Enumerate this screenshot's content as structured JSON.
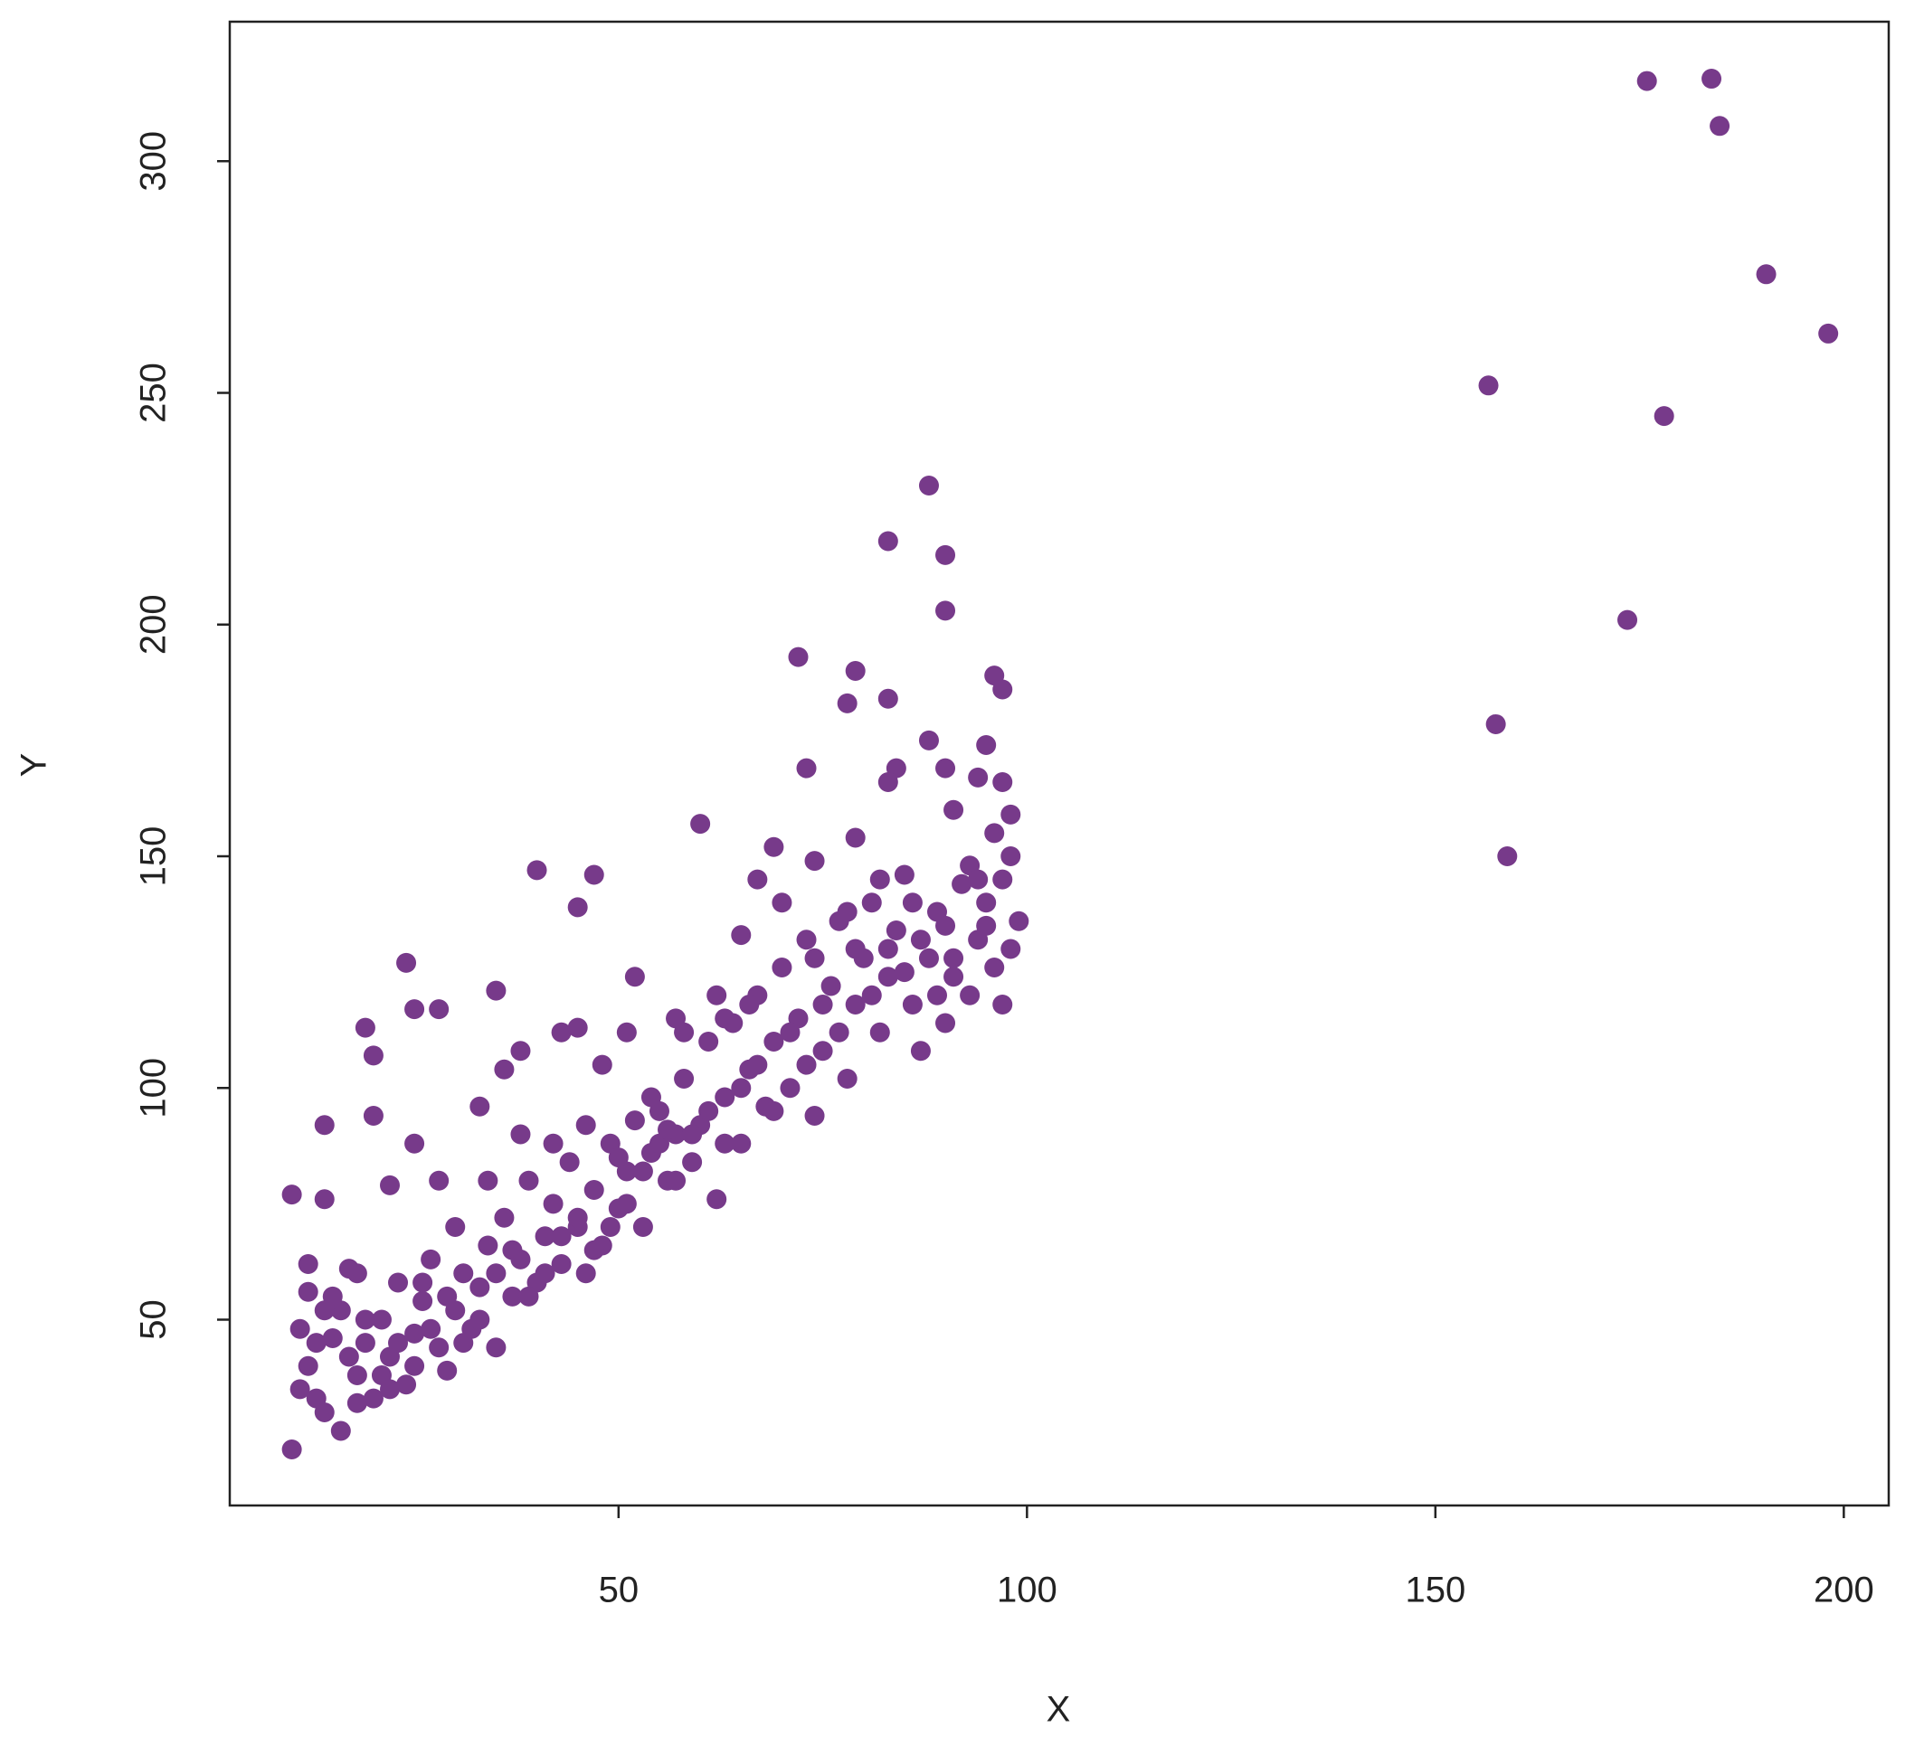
{
  "chart_data": {
    "type": "scatter",
    "x_label": "X",
    "y_label": "Y",
    "color": "#773a8a",
    "xlim": [
      2.4,
      205.5
    ],
    "ylim": [
      9.9,
      330.1
    ],
    "xticks": [
      50,
      100,
      150,
      200
    ],
    "yticks": [
      50,
      100,
      150,
      200,
      250,
      300
    ],
    "x": [
      175.9,
      183.8,
      184.8,
      190.5,
      198.1,
      156.5,
      178,
      173.5,
      157.4,
      158.8,
      88,
      83,
      90,
      90,
      72,
      79,
      78,
      83,
      96,
      97,
      88,
      95,
      73,
      84,
      90,
      83,
      97,
      94,
      91,
      98,
      60,
      79,
      74,
      69,
      40,
      47,
      45,
      24,
      25,
      28,
      35,
      19,
      20,
      14,
      10,
      14,
      10,
      16,
      11,
      12,
      13,
      12,
      15,
      16,
      17,
      18,
      19,
      20,
      21,
      22,
      23,
      24,
      25,
      26,
      27,
      28,
      29,
      30,
      31,
      32,
      33,
      34,
      35,
      36,
      37,
      38,
      39,
      40,
      41,
      42,
      43,
      44,
      45,
      46,
      47,
      48,
      49,
      50,
      51,
      52,
      53,
      54,
      55,
      56,
      57,
      58,
      59,
      60,
      61,
      62,
      63,
      64,
      65,
      66,
      67,
      68,
      69,
      70,
      71,
      72,
      73,
      74,
      75,
      76,
      77,
      78,
      79,
      80,
      81,
      82,
      83,
      84,
      85,
      86,
      87,
      88,
      89,
      90,
      91,
      92,
      93,
      94,
      95,
      96,
      97,
      98,
      99,
      97,
      98,
      96,
      95,
      93,
      91,
      89,
      87,
      85,
      83,
      81,
      79,
      77,
      75,
      73,
      71,
      69,
      67,
      65,
      63,
      61,
      59,
      57,
      55,
      53,
      51,
      49,
      47,
      45,
      43,
      41,
      39,
      37,
      35,
      33,
      31,
      29,
      27,
      25,
      23,
      21,
      19,
      17,
      15,
      13,
      11,
      14,
      18,
      22,
      26,
      30,
      34,
      38,
      42,
      46,
      50,
      54,
      58,
      62,
      66,
      70,
      74,
      78,
      82,
      86,
      90,
      94,
      36,
      38,
      43,
      45,
      51,
      52,
      57,
      63,
      65,
      67,
      56,
      48,
      33,
      28,
      25,
      20,
      22,
      18,
      14,
      12
    ],
    "values": [
      317.3,
      317.8,
      307.6,
      275.6,
      262.8,
      251.6,
      245,
      201,
      178.5,
      150,
      230,
      218,
      215,
      203,
      193,
      190,
      183,
      184,
      189,
      186,
      175,
      174,
      169,
      169,
      169,
      166,
      166,
      167,
      160,
      159,
      157,
      154,
      149,
      152,
      147,
      146,
      139,
      127,
      117,
      117,
      121,
      113,
      107,
      92,
      77,
      76,
      22,
      26,
      48,
      40,
      33,
      56,
      46,
      52,
      61,
      38,
      45,
      33,
      50,
      42,
      58,
      36,
      47,
      54,
      63,
      44,
      39,
      52,
      60,
      48,
      57,
      66,
      44,
      72,
      55,
      63,
      80,
      58,
      68,
      75,
      62,
      84,
      70,
      60,
      78,
      66,
      88,
      74,
      82,
      93,
      70,
      86,
      95,
      80,
      90,
      102,
      84,
      92,
      110,
      76,
      98,
      114,
      88,
      104,
      120,
      96,
      110,
      126,
      100,
      115,
      132,
      94,
      108,
      122,
      136,
      102,
      118,
      128,
      140,
      112,
      124,
      134,
      146,
      118,
      108,
      128,
      138,
      114,
      124,
      144,
      120,
      132,
      140,
      126,
      118,
      150,
      136,
      145,
      130,
      155,
      135,
      148,
      128,
      120,
      132,
      125,
      130,
      120,
      130,
      112,
      118,
      105,
      112,
      95,
      105,
      100,
      88,
      95,
      90,
      80,
      88,
      82,
      75,
      70,
      65,
      72,
      68,
      60,
      55,
      65,
      60,
      50,
      45,
      55,
      48,
      40,
      45,
      38,
      50,
      42,
      55,
      45,
      35,
      30,
      32,
      35,
      58,
      70,
      80,
      90,
      88,
      92,
      85,
      98,
      112,
      120,
      118,
      140,
      128,
      138,
      145,
      140,
      135,
      145,
      104,
      108,
      112,
      113,
      112,
      124,
      115,
      115,
      133,
      145,
      91,
      105,
      96,
      80,
      88,
      94,
      79,
      60,
      52,
      62
    ]
  }
}
